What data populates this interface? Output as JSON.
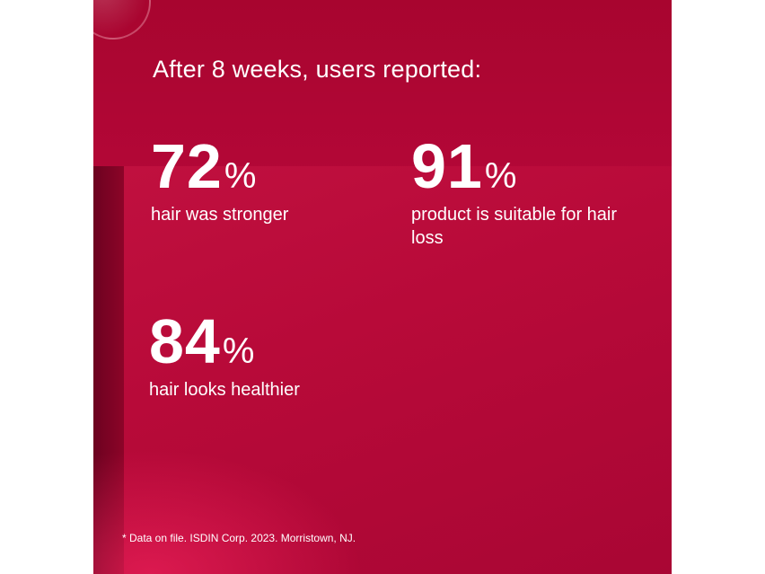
{
  "heading": "After 8 weeks, users reported:",
  "stats": [
    {
      "value": "72",
      "unit": "%",
      "label": "hair was stronger"
    },
    {
      "value": "91",
      "unit": "%",
      "label": "product is suitable for hair loss"
    },
    {
      "value": "84",
      "unit": "%",
      "label": "hair looks healthier"
    }
  ],
  "footnote": "* Data on file. ISDIN Corp. 2023. Morristown, NJ.",
  "colors": {
    "background": "#b00834",
    "text": "#ffffff"
  }
}
